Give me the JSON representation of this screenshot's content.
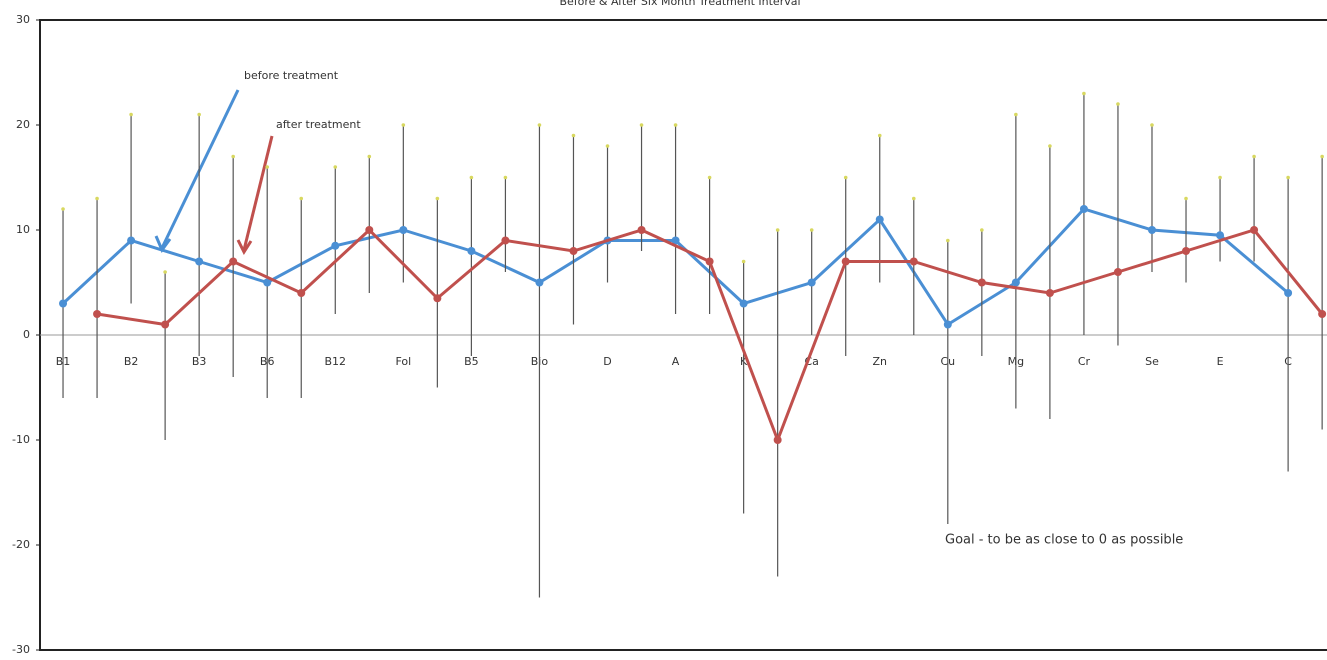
{
  "chart_data": {
    "type": "line",
    "title": "Before & After Six Month Treatment Interval",
    "categories": [
      "B1",
      "B2",
      "B3",
      "B6",
      "B12",
      "Fol",
      "B5",
      "Bio",
      "D",
      "A",
      "K",
      "Ca",
      "Zn",
      "Cu",
      "Mg",
      "Cr",
      "Se",
      "E",
      "C"
    ],
    "series": [
      {
        "name": "before treatment",
        "color": "#4a8fd4",
        "values": [
          3,
          9,
          7,
          5,
          8.5,
          10,
          8,
          5,
          9,
          9,
          3,
          5,
          11,
          1,
          5,
          12,
          10,
          9.5,
          4
        ],
        "err_minus": [
          9,
          6,
          9,
          11,
          6.5,
          5,
          10,
          30,
          4,
          7,
          20,
          5,
          6,
          19,
          12,
          12,
          4,
          2.5,
          17
        ],
        "err_plus": [
          9,
          12,
          14,
          11,
          7.5,
          10,
          7,
          15,
          9,
          11,
          4,
          5,
          8,
          8,
          16,
          11,
          10,
          5.5,
          11
        ]
      },
      {
        "name": "after treatment",
        "color": "#c0504d",
        "values": [
          2,
          1,
          7,
          4,
          10,
          3.5,
          9,
          8,
          10,
          7,
          -10,
          7,
          7,
          5,
          4,
          6,
          8,
          10,
          2
        ],
        "err_minus": [
          8,
          11,
          11,
          10,
          6,
          8.5,
          3,
          7,
          2,
          5,
          13,
          9,
          7,
          7,
          12,
          7,
          3,
          3,
          11
        ],
        "err_plus": [
          11,
          5,
          10,
          9,
          7,
          9.5,
          6,
          11,
          10,
          8,
          20,
          8,
          6,
          5,
          14,
          16,
          5,
          7,
          15
        ]
      }
    ],
    "annotation": "Goal - to be as close to 0 as possible",
    "ylim": [
      -30,
      30
    ],
    "yticks": [
      -30,
      -20,
      -10,
      0,
      10,
      20,
      30
    ]
  }
}
